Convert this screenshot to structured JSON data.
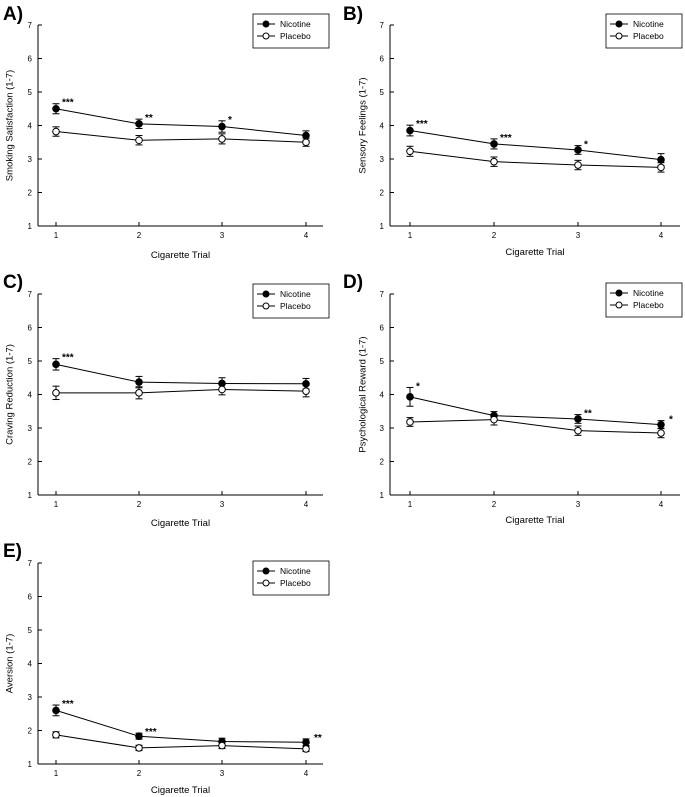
{
  "chart_data": [
    {
      "type": "line",
      "panel_label": "A)",
      "xlabel": "Cigarette Trial",
      "ylabel": "Smoking Satisfaction (1-7)",
      "x": [
        1,
        2,
        3,
        4
      ],
      "xticks": [
        "1",
        "2",
        "3",
        "4"
      ],
      "yticks": [
        "1",
        "2",
        "3",
        "4",
        "5",
        "6",
        "7"
      ],
      "ylim": [
        1,
        7
      ],
      "legend_position": "top-right",
      "series": [
        {
          "name": "Nicotine",
          "marker": "filled-circle",
          "values": [
            4.5,
            4.05,
            3.97,
            3.7
          ],
          "errors": [
            0.15,
            0.14,
            0.17,
            0.14
          ]
        },
        {
          "name": "Placebo",
          "marker": "open-circle",
          "values": [
            3.82,
            3.56,
            3.6,
            3.5
          ],
          "errors": [
            0.14,
            0.14,
            0.15,
            0.12
          ]
        }
      ],
      "annotations": [
        {
          "x": 1,
          "text": "***"
        },
        {
          "x": 2,
          "text": "**"
        },
        {
          "x": 3,
          "text": "*"
        }
      ]
    },
    {
      "type": "line",
      "panel_label": "B)",
      "xlabel": "Cigarette Trial",
      "ylabel": "Sensory Feelings (1-7)",
      "x": [
        1,
        2,
        3,
        4
      ],
      "xticks": [
        "1",
        "2",
        "3",
        "4"
      ],
      "yticks": [
        "1",
        "2",
        "3",
        "4",
        "5",
        "6",
        "7"
      ],
      "ylim": [
        1,
        7
      ],
      "legend_position": "top-right",
      "series": [
        {
          "name": "Nicotine",
          "marker": "filled-circle",
          "values": [
            3.85,
            3.45,
            3.27,
            2.98
          ],
          "errors": [
            0.16,
            0.15,
            0.13,
            0.18
          ]
        },
        {
          "name": "Placebo",
          "marker": "open-circle",
          "values": [
            3.23,
            2.92,
            2.82,
            2.75
          ],
          "errors": [
            0.15,
            0.14,
            0.14,
            0.14
          ]
        }
      ],
      "annotations": [
        {
          "x": 1,
          "text": "***"
        },
        {
          "x": 2,
          "text": "***"
        },
        {
          "x": 3,
          "text": "*"
        }
      ]
    },
    {
      "type": "line",
      "panel_label": "C)",
      "xlabel": "Cigarette Trial",
      "ylabel": "Craving Reduction (1-7)",
      "x": [
        1,
        2,
        3,
        4
      ],
      "xticks": [
        "1",
        "2",
        "3",
        "4"
      ],
      "yticks": [
        "1",
        "2",
        "3",
        "4",
        "5",
        "6",
        "7"
      ],
      "ylim": [
        1,
        7
      ],
      "legend_position": "top-right",
      "series": [
        {
          "name": "Nicotine",
          "marker": "filled-circle",
          "values": [
            4.9,
            4.37,
            4.33,
            4.32
          ],
          "errors": [
            0.17,
            0.17,
            0.17,
            0.16
          ]
        },
        {
          "name": "Placebo",
          "marker": "open-circle",
          "values": [
            4.05,
            4.05,
            4.15,
            4.1
          ],
          "errors": [
            0.2,
            0.18,
            0.16,
            0.17
          ]
        }
      ],
      "annotations": [
        {
          "x": 1,
          "text": "***"
        }
      ]
    },
    {
      "type": "line",
      "panel_label": "D)",
      "xlabel": "Cigarette Trial",
      "ylabel": "Psychological Reward (1-7)",
      "x": [
        1,
        2,
        3,
        4
      ],
      "xticks": [
        "1",
        "2",
        "3",
        "4"
      ],
      "yticks": [
        "1",
        "2",
        "3",
        "4",
        "5",
        "6",
        "7"
      ],
      "ylim": [
        1,
        7
      ],
      "legend_position": "top-right",
      "series": [
        {
          "name": "Nicotine",
          "marker": "filled-circle",
          "values": [
            3.93,
            3.37,
            3.27,
            3.1
          ],
          "errors": [
            0.28,
            0.12,
            0.13,
            0.12
          ]
        },
        {
          "name": "Placebo",
          "marker": "open-circle",
          "values": [
            3.18,
            3.25,
            2.92,
            2.85
          ],
          "errors": [
            0.13,
            0.16,
            0.14,
            0.14
          ]
        }
      ],
      "annotations": [
        {
          "x": 1,
          "text": "*"
        },
        {
          "x": 3,
          "text": "**"
        },
        {
          "x": 4,
          "text": "*"
        }
      ]
    },
    {
      "type": "line",
      "panel_label": "E)",
      "xlabel": "Cigarette Trial",
      "ylabel": "Aversion (1-7)",
      "x": [
        1,
        2,
        3,
        4
      ],
      "xticks": [
        "1",
        "2",
        "3",
        "4"
      ],
      "yticks": [
        "1",
        "2",
        "3",
        "4",
        "5",
        "6",
        "7"
      ],
      "ylim": [
        1,
        7
      ],
      "legend_position": "top-right",
      "series": [
        {
          "name": "Nicotine",
          "marker": "filled-circle",
          "values": [
            2.6,
            1.83,
            1.67,
            1.65
          ],
          "errors": [
            0.16,
            0.09,
            0.1,
            0.1
          ]
        },
        {
          "name": "Placebo",
          "marker": "open-circle",
          "values": [
            1.87,
            1.48,
            1.55,
            1.45
          ],
          "errors": [
            0.09,
            0.08,
            0.09,
            0.08
          ]
        }
      ],
      "annotations": [
        {
          "x": 1,
          "text": "***"
        },
        {
          "x": 2,
          "text": "***"
        },
        {
          "x": 4,
          "text": "**"
        }
      ]
    }
  ]
}
